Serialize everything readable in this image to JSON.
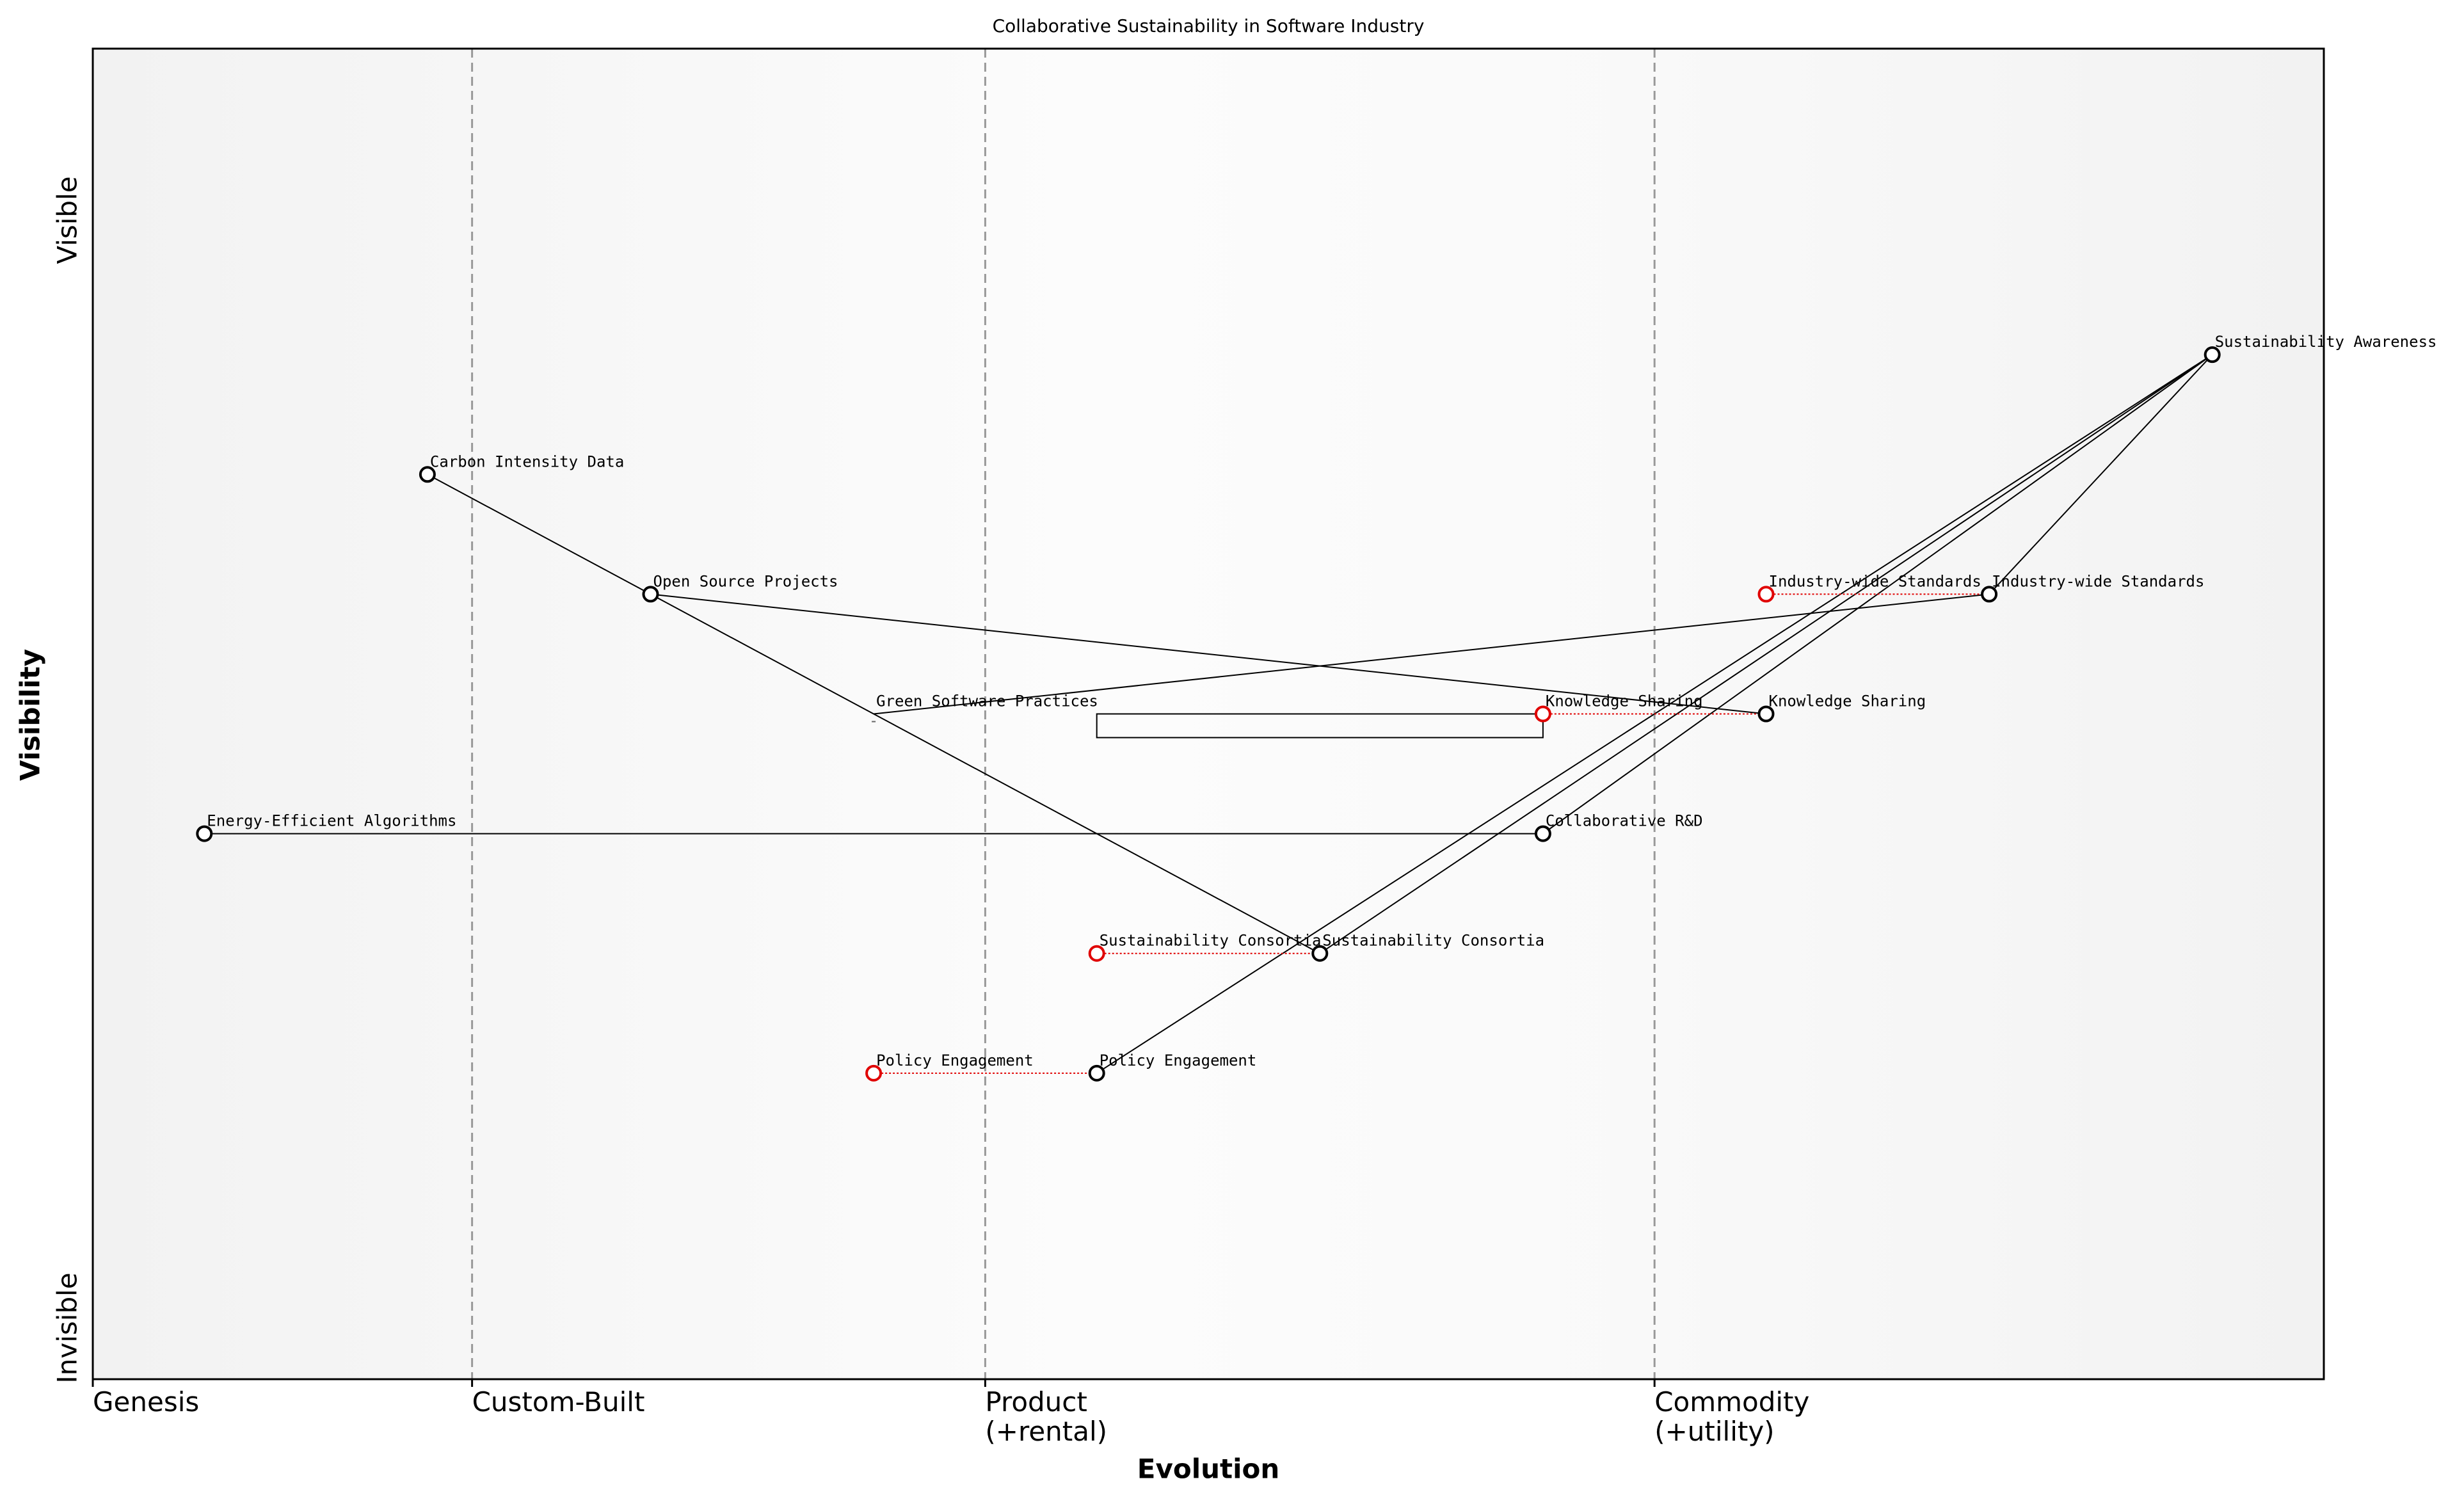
{
  "chart_data": {
    "type": "wardley",
    "title": "Collaborative Sustainability in Software Industry",
    "x_label": "Evolution",
    "y_label": "Visibility",
    "xlim": [
      0,
      1
    ],
    "ylim": [
      0,
      1
    ],
    "xticks": [
      {
        "value": 0,
        "label": "Genesis"
      },
      {
        "value": 0.17,
        "label": "Custom-Built"
      },
      {
        "value": 0.4,
        "label": "Product\n(+rental)"
      },
      {
        "value": 0.7,
        "label": "Commodity\n(+utility)"
      }
    ],
    "yticks": [
      {
        "value": 0,
        "label": "Invisible"
      },
      {
        "value": 1,
        "label": "Visible"
      }
    ],
    "components": [
      {
        "name": "Sustainability Awareness",
        "evolution": 0.95,
        "visibility": 0.77
      },
      {
        "name": "Carbon Intensity Data",
        "evolution": 0.15,
        "visibility": 0.68
      },
      {
        "name": "Open Source Projects",
        "evolution": 0.25,
        "visibility": 0.59
      },
      {
        "name": "Green Software Practices",
        "evolution": 0.35,
        "visibility": 0.5
      },
      {
        "name": "Knowledge Sharing",
        "evolution": 0.75,
        "visibility": 0.5,
        "evolved_from": 0.65
      },
      {
        "name": "Industry-wide Standards",
        "evolution": 0.85,
        "visibility": 0.59,
        "evolved_from": 0.75
      },
      {
        "name": "Energy-Efficient Algorithms",
        "evolution": 0.05,
        "visibility": 0.41
      },
      {
        "name": "Collaborative R&D",
        "evolution": 0.65,
        "visibility": 0.41
      },
      {
        "name": "Sustainability Consortia",
        "evolution": 0.55,
        "visibility": 0.32,
        "evolved_from": 0.45
      },
      {
        "name": "Policy Engagement",
        "evolution": 0.45,
        "visibility": 0.23,
        "evolved_from": 0.35
      }
    ],
    "links": [
      [
        "Sustainability Awareness",
        "Industry-wide Standards"
      ],
      [
        "Sustainability Awareness",
        "Sustainability Consortia"
      ],
      [
        "Sustainability Awareness",
        "Collaborative R&D"
      ],
      [
        "Sustainability Awareness",
        "Policy Engagement"
      ],
      [
        "Carbon Intensity Data",
        "Open Source Projects"
      ],
      [
        "Open Source Projects",
        "Knowledge Sharing"
      ],
      [
        "Open Source Projects",
        "Sustainability Consortia"
      ],
      [
        "Industry-wide Standards",
        "Green Software Practices"
      ],
      [
        "Energy-Efficient Algorithms",
        "Collaborative R&D"
      ]
    ],
    "pipelines": [
      {
        "visibility": 0.5,
        "from": 0.45,
        "to": 0.65
      }
    ],
    "color": "#000000",
    "evolution_color": "#e00000"
  }
}
